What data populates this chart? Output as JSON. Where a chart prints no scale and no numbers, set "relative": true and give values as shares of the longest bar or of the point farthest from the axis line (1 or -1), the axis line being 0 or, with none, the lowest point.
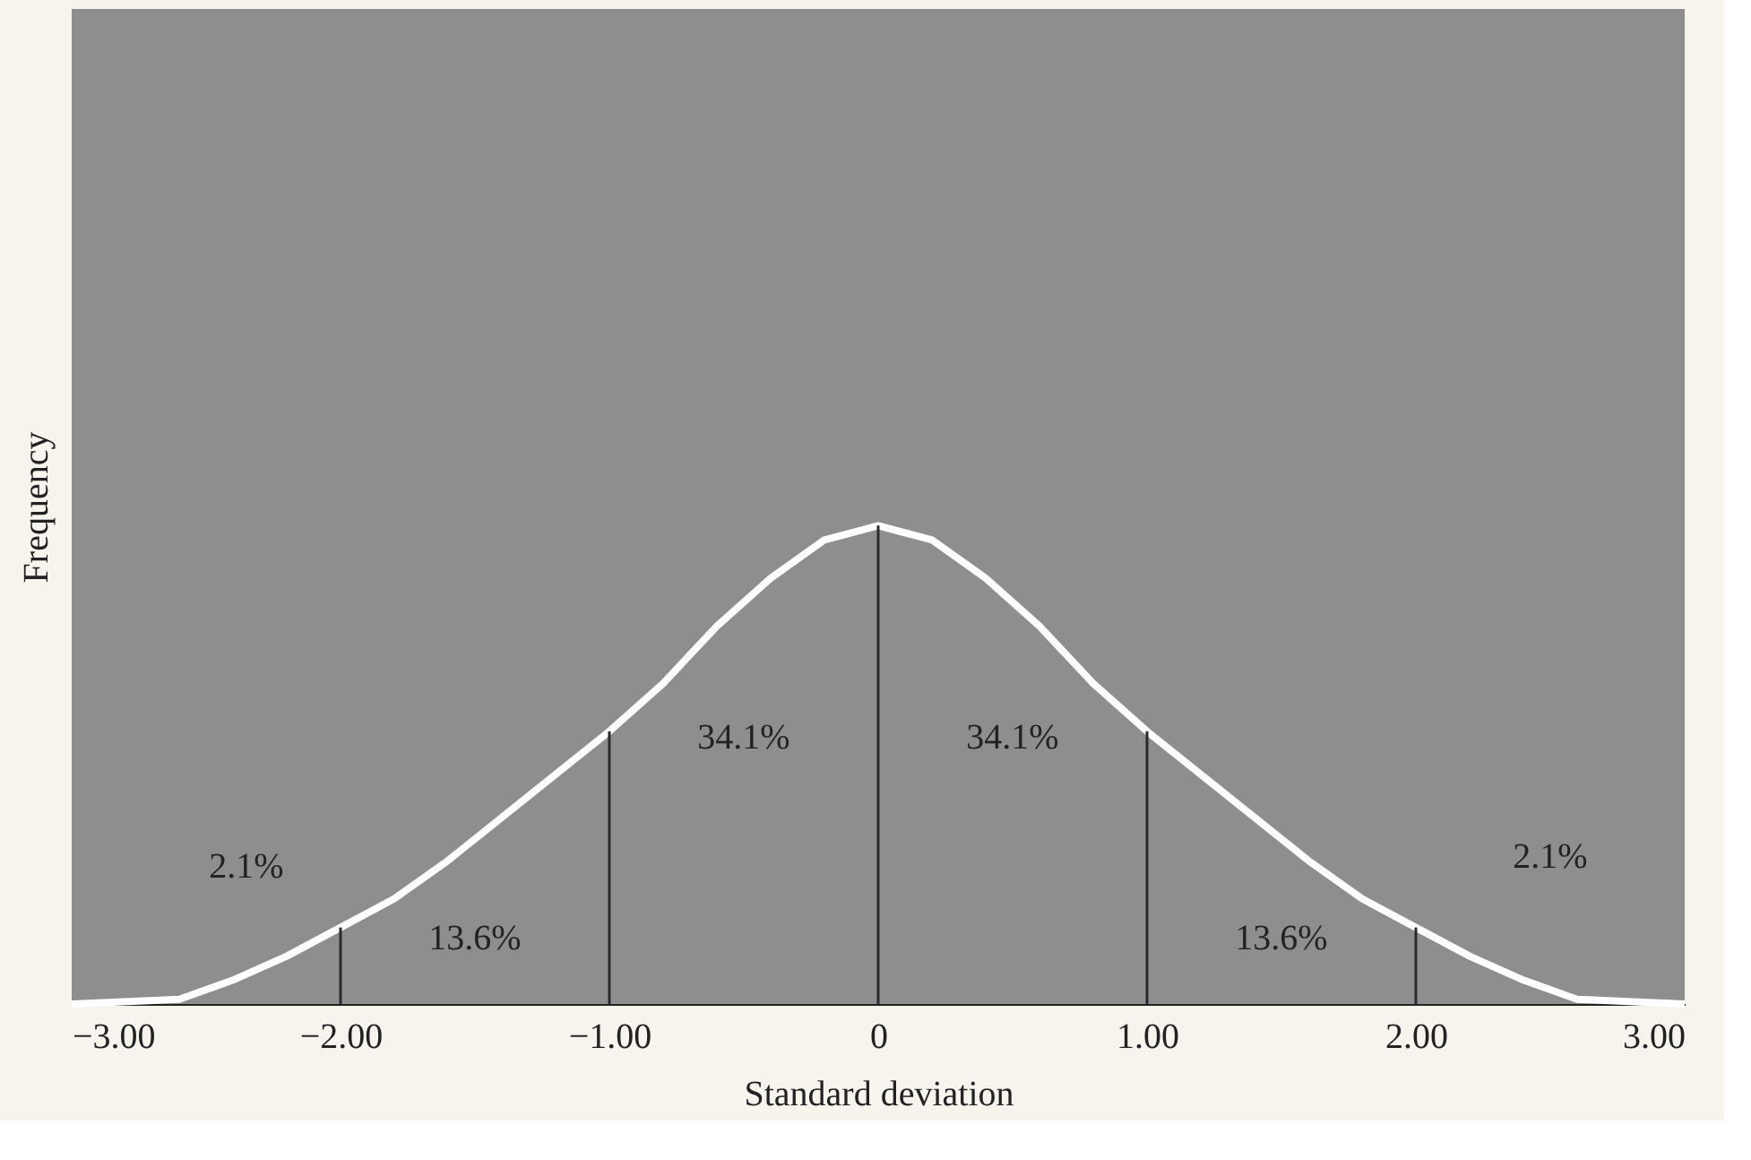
{
  "chart_data": {
    "type": "line",
    "relative": true,
    "xlabel": "Standard deviation",
    "ylabel": "Frequency",
    "x": [
      -3.0,
      -2.6,
      -2.4,
      -2.2,
      -2.0,
      -1.8,
      -1.6,
      -1.4,
      -1.2,
      -1.0,
      -0.8,
      -0.6,
      -0.4,
      -0.2,
      0,
      0.2,
      0.4,
      0.6,
      0.8,
      1.0,
      1.2,
      1.4,
      1.6,
      1.8,
      2.0,
      2.2,
      2.4,
      2.6,
      3.0
    ],
    "series": [
      {
        "color": "#ffffff",
        "values": [
          0.0,
          0.01,
          0.05,
          0.1,
          0.16,
          0.22,
          0.3,
          0.39,
          0.48,
          0.57,
          0.67,
          0.79,
          0.89,
          0.97,
          1.0,
          0.97,
          0.89,
          0.79,
          0.67,
          0.57,
          0.48,
          0.39,
          0.3,
          0.22,
          0.16,
          0.1,
          0.05,
          0.01,
          0.0
        ]
      }
    ],
    "xlim": [
      -3,
      3
    ],
    "xticks": [
      {
        "value": -3,
        "label": "−3.00"
      },
      {
        "value": -2,
        "label": "−2.00"
      },
      {
        "value": -1,
        "label": "−1.00"
      },
      0,
      {
        "value": 1,
        "label": "1.00"
      },
      {
        "value": 2,
        "label": "2.00"
      },
      {
        "value": 3,
        "label": "3.00"
      }
    ],
    "ref_lines": [
      {
        "axis": "x",
        "value": -2,
        "color": "#2a2a2a"
      },
      {
        "axis": "x",
        "value": -1,
        "color": "#2a2a2a"
      },
      {
        "axis": "x",
        "value": 0,
        "color": "#2a2a2a"
      },
      {
        "axis": "x",
        "value": 1,
        "color": "#2a2a2a"
      },
      {
        "axis": "x",
        "value": 2,
        "color": "#2a2a2a"
      }
    ],
    "annotations": [
      "2.1%",
      "13.6%",
      "34.1%",
      "34.1%",
      "13.6%",
      "2.1%"
    ],
    "grid": false,
    "marker": "none",
    "line_style": "solid"
  }
}
